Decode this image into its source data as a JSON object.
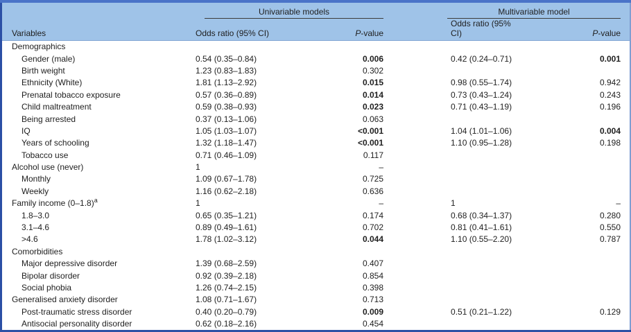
{
  "table": {
    "spanners": {
      "univariable": "Univariable models",
      "multivariable": "Multivariable model"
    },
    "headers": {
      "variables": "Variables",
      "or_uni": "Odds ratio (95% CI)",
      "p_uni": "P-value",
      "or_multi": "Odds ratio (95% CI)",
      "p_multi": "P-value"
    },
    "rows": [
      {
        "label": "Demographics",
        "indent": 0,
        "or_uni": "",
        "p_uni": "",
        "p_uni_bold": false,
        "or_multi": "",
        "p_multi": "",
        "p_multi_bold": false
      },
      {
        "label": "Gender (male)",
        "indent": 1,
        "or_uni": "0.54 (0.35–0.84)",
        "p_uni": "0.006",
        "p_uni_bold": true,
        "or_multi": "0.42 (0.24–0.71)",
        "p_multi": "0.001",
        "p_multi_bold": true
      },
      {
        "label": "Birth weight",
        "indent": 1,
        "or_uni": "1.23 (0.83–1.83)",
        "p_uni": "0.302",
        "p_uni_bold": false,
        "or_multi": "",
        "p_multi": "",
        "p_multi_bold": false
      },
      {
        "label": "Ethnicity (White)",
        "indent": 1,
        "or_uni": "1.81 (1.13–2.92)",
        "p_uni": "0.015",
        "p_uni_bold": true,
        "or_multi": "0.98 (0.55–1.74)",
        "p_multi": "0.942",
        "p_multi_bold": false
      },
      {
        "label": "Prenatal tobacco exposure",
        "indent": 1,
        "or_uni": "0.57 (0.36–0.89)",
        "p_uni": "0.014",
        "p_uni_bold": true,
        "or_multi": "0.73 (0.43–1.24)",
        "p_multi": "0.243",
        "p_multi_bold": false
      },
      {
        "label": "Child maltreatment",
        "indent": 1,
        "or_uni": "0.59 (0.38–0.93)",
        "p_uni": "0.023",
        "p_uni_bold": true,
        "or_multi": "0.71 (0.43–1.19)",
        "p_multi": "0.196",
        "p_multi_bold": false
      },
      {
        "label": "Being arrested",
        "indent": 1,
        "or_uni": "0.37 (0.13–1.06)",
        "p_uni": "0.063",
        "p_uni_bold": false,
        "or_multi": "",
        "p_multi": "",
        "p_multi_bold": false
      },
      {
        "label": "IQ",
        "indent": 1,
        "or_uni": "1.05 (1.03–1.07)",
        "p_uni": "<0.001",
        "p_uni_bold": true,
        "or_multi": "1.04 (1.01–1.06)",
        "p_multi": "0.004",
        "p_multi_bold": true
      },
      {
        "label": "Years of schooling",
        "indent": 1,
        "or_uni": "1.32 (1.18–1.47)",
        "p_uni": "<0.001",
        "p_uni_bold": true,
        "or_multi": "1.10 (0.95–1.28)",
        "p_multi": "0.198",
        "p_multi_bold": false
      },
      {
        "label": "Tobacco use",
        "indent": 1,
        "or_uni": "0.71 (0.46–1.09)",
        "p_uni": "0.117",
        "p_uni_bold": false,
        "or_multi": "",
        "p_multi": "",
        "p_multi_bold": false
      },
      {
        "label": "Alcohol use (never)",
        "indent": 0,
        "or_uni": "1",
        "p_uni": "–",
        "p_uni_bold": false,
        "or_multi": "",
        "p_multi": "",
        "p_multi_bold": false
      },
      {
        "label": "Monthly",
        "indent": 1,
        "or_uni": "1.09 (0.67–1.78)",
        "p_uni": "0.725",
        "p_uni_bold": false,
        "or_multi": "",
        "p_multi": "",
        "p_multi_bold": false
      },
      {
        "label": "Weekly",
        "indent": 1,
        "or_uni": "1.16 (0.62–2.18)",
        "p_uni": "0.636",
        "p_uni_bold": false,
        "or_multi": "",
        "p_multi": "",
        "p_multi_bold": false
      },
      {
        "label": "Family income (0–1.8)",
        "sup": "a",
        "indent": 0,
        "or_uni": "1",
        "p_uni": "–",
        "p_uni_bold": false,
        "or_multi": "1",
        "p_multi": "–",
        "p_multi_bold": false
      },
      {
        "label": "1.8–3.0",
        "indent": 1,
        "or_uni": "0.65 (0.35–1.21)",
        "p_uni": "0.174",
        "p_uni_bold": false,
        "or_multi": "0.68 (0.34–1.37)",
        "p_multi": "0.280",
        "p_multi_bold": false
      },
      {
        "label": "3.1–4.6",
        "indent": 1,
        "or_uni": "0.89 (0.49–1.61)",
        "p_uni": "0.702",
        "p_uni_bold": false,
        "or_multi": "0.81 (0.41–1.61)",
        "p_multi": "0.550",
        "p_multi_bold": false
      },
      {
        "label": ">4.6",
        "indent": 1,
        "or_uni": "1.78 (1.02–3.12)",
        "p_uni": "0.044",
        "p_uni_bold": true,
        "or_multi": "1.10 (0.55–2.20)",
        "p_multi": "0.787",
        "p_multi_bold": false
      },
      {
        "label": "Comorbidities",
        "indent": 0,
        "or_uni": "",
        "p_uni": "",
        "p_uni_bold": false,
        "or_multi": "",
        "p_multi": "",
        "p_multi_bold": false
      },
      {
        "label": "Major depressive disorder",
        "indent": 1,
        "or_uni": "1.39 (0.68–2.59)",
        "p_uni": "0.407",
        "p_uni_bold": false,
        "or_multi": "",
        "p_multi": "",
        "p_multi_bold": false
      },
      {
        "label": "Bipolar disorder",
        "indent": 1,
        "or_uni": "0.92 (0.39–2.18)",
        "p_uni": "0.854",
        "p_uni_bold": false,
        "or_multi": "",
        "p_multi": "",
        "p_multi_bold": false
      },
      {
        "label": "Social phobia",
        "indent": 1,
        "or_uni": "1.26 (0.74–2.15)",
        "p_uni": "0.398",
        "p_uni_bold": false,
        "or_multi": "",
        "p_multi": "",
        "p_multi_bold": false
      },
      {
        "label": "Generalised anxiety disorder",
        "indent": 0,
        "or_uni": "1.08 (0.71–1.67)",
        "p_uni": "0.713",
        "p_uni_bold": false,
        "or_multi": "",
        "p_multi": "",
        "p_multi_bold": false
      },
      {
        "label": "Post-traumatic stress disorder",
        "indent": 1,
        "or_uni": "0.40 (0.20–0.79)",
        "p_uni": "0.009",
        "p_uni_bold": true,
        "or_multi": "0.51 (0.21–1.22)",
        "p_multi": "0.129",
        "p_multi_bold": false
      },
      {
        "label": "Antisocial personality disorder",
        "indent": 1,
        "or_uni": "0.62 (0.18–2.16)",
        "p_uni": "0.454",
        "p_uni_bold": false,
        "or_multi": "",
        "p_multi": "",
        "p_multi_bold": false
      }
    ]
  },
  "colors": {
    "top_bar": "#4a73c8",
    "header_bg": "#9fc3e8",
    "left_border": "#2b4fa5",
    "bottom_bar": "#2b4fa5",
    "right_border": "#7f9ed2",
    "spanner_rule": "#3b3b3b",
    "text": "#1e1e1e"
  }
}
